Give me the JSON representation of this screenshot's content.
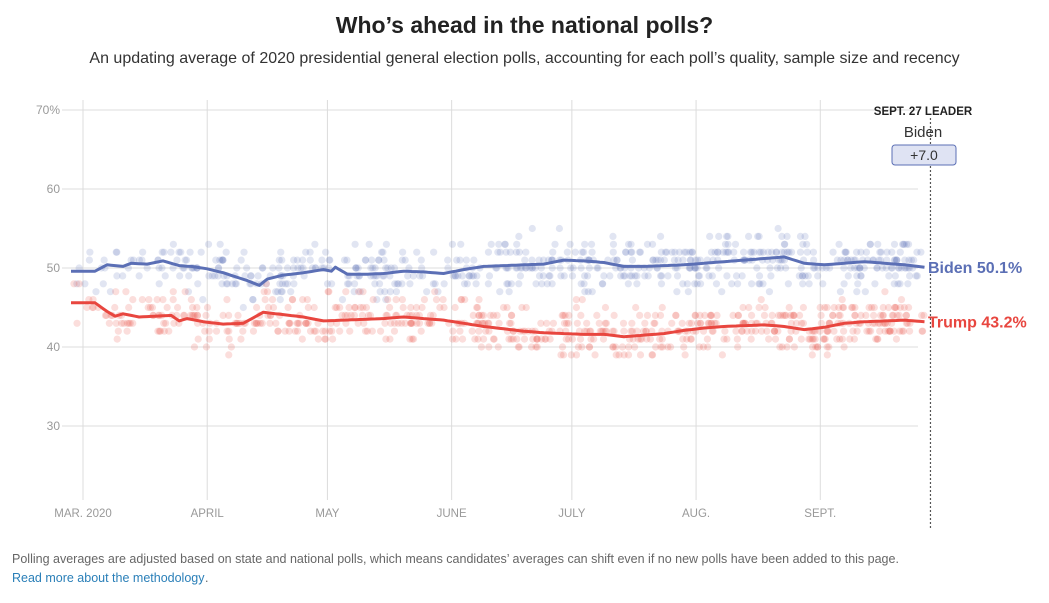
{
  "header": {
    "title": "Who’s ahead in the national polls?",
    "subtitle": "An updating average of 2020 presidential general election polls, accounting for each poll’s quality, sample size and recency"
  },
  "leader_box": {
    "heading": "SEPT. 27 LEADER",
    "name": "Biden",
    "margin": "+7.0"
  },
  "footer": {
    "note": "Polling averages are adjusted based on state and national polls, which means candidates’ averages can shift even if no new polls have been added to this page.",
    "link_text": "Read more about the methodology",
    "trailing": "."
  },
  "colors": {
    "biden": "#5b6fb5",
    "trump": "#e8463f",
    "grid": "#dddddd"
  },
  "chart_data": {
    "type": "line",
    "title": "Who’s ahead in the national polls?",
    "x_unit": "days since Mar. 1, 2020",
    "xlim": [
      -7,
      210
    ],
    "ylim": [
      20,
      70
    ],
    "y_ticks": [
      30,
      40,
      50,
      60,
      70
    ],
    "y_tick_labels": [
      "30",
      "40",
      "50",
      "60",
      "70%"
    ],
    "x_ticks": [
      {
        "day": 0,
        "label": "MAR. 2020"
      },
      {
        "day": 31,
        "label": "APRIL"
      },
      {
        "day": 61,
        "label": "MAY"
      },
      {
        "day": 92,
        "label": "JUNE"
      },
      {
        "day": 122,
        "label": "JULY"
      },
      {
        "day": 153,
        "label": "AUG."
      },
      {
        "day": 184,
        "label": "SEPT."
      }
    ],
    "marker_day": 210,
    "grid": true,
    "series": [
      {
        "name": "Biden",
        "end_label": "Biden 50.1%",
        "color": "#5b6fb5",
        "x": [
          -3,
          3,
          6,
          10,
          12,
          16,
          20,
          24,
          27,
          31,
          35,
          38,
          41,
          44,
          46,
          50,
          55,
          60,
          62,
          63,
          66,
          70,
          75,
          80,
          85,
          90,
          95,
          100,
          105,
          110,
          115,
          120,
          125,
          130,
          135,
          140,
          145,
          150,
          155,
          160,
          165,
          170,
          175,
          180,
          185,
          190,
          195,
          200,
          205,
          210
        ],
        "values": [
          49.6,
          49.6,
          50.4,
          50.2,
          50.6,
          50.5,
          50.9,
          50.3,
          50.2,
          49.9,
          49.4,
          48.9,
          48.4,
          47.8,
          48.6,
          49.1,
          49.4,
          49.8,
          49.6,
          50.1,
          49.2,
          49.2,
          49.3,
          49.6,
          49.5,
          49.3,
          49.8,
          50.2,
          50.3,
          50.4,
          50.5,
          51.0,
          50.9,
          50.7,
          50.2,
          50.2,
          50.3,
          50.4,
          50.6,
          50.8,
          51.0,
          51.2,
          51.4,
          50.6,
          50.4,
          50.6,
          50.8,
          50.6,
          50.4,
          50.1
        ]
      },
      {
        "name": "Trump",
        "end_label": "Trump 43.2%",
        "color": "#e8463f",
        "x": [
          -3,
          3,
          6,
          8,
          10,
          14,
          18,
          22,
          24,
          26,
          30,
          35,
          40,
          45,
          50,
          55,
          60,
          65,
          70,
          75,
          80,
          85,
          90,
          95,
          100,
          105,
          110,
          115,
          120,
          125,
          130,
          135,
          140,
          145,
          150,
          155,
          160,
          165,
          170,
          175,
          180,
          185,
          190,
          195,
          200,
          205,
          210
        ],
        "values": [
          45.6,
          45.6,
          44.5,
          43.9,
          44.2,
          43.8,
          43.9,
          44.0,
          43.3,
          43.6,
          43.2,
          42.9,
          43.0,
          44.4,
          44.1,
          43.8,
          43.3,
          43.4,
          43.5,
          43.6,
          43.8,
          43.6,
          43.4,
          43.0,
          42.6,
          42.3,
          42.0,
          41.8,
          41.7,
          41.6,
          41.6,
          41.3,
          41.5,
          41.7,
          42.1,
          42.4,
          42.6,
          42.7,
          42.8,
          42.6,
          42.2,
          42.5,
          43.0,
          43.2,
          43.3,
          43.4,
          43.2
        ]
      }
    ]
  }
}
